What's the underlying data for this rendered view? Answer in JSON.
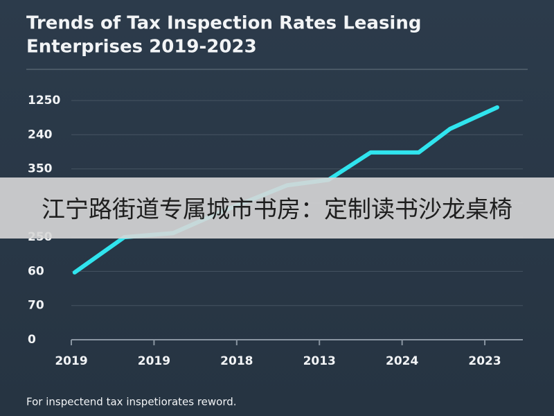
{
  "chart_data": {
    "type": "line",
    "title": [
      "Trends of Tax Inspection Rates Leasing",
      "Enterprises 2019-2023"
    ],
    "note": "For inspectend tax inspetiorates reword.",
    "overlay": "江宁路街道专属城市书房：定制读书沙龙桌椅",
    "x": [
      0.04,
      0.64,
      1.23,
      1.82,
      2.61,
      3.11,
      3.62,
      4.2,
      4.58,
      5.15
    ],
    "series": [
      {
        "color": "#30e4ee",
        "values": [
          1.97,
          3.0,
          3.12,
          3.75,
          4.52,
          4.68,
          5.48,
          5.48,
          6.17,
          6.8
        ]
      }
    ],
    "xlim": [
      0,
      5.46
    ],
    "xticks": [
      {
        "value": 0,
        "label": "2019"
      },
      {
        "value": 1,
        "label": "2019"
      },
      {
        "value": 2,
        "label": "2018"
      },
      {
        "value": 3,
        "label": "2013"
      },
      {
        "value": 4,
        "label": "2024"
      },
      {
        "value": 5,
        "label": "2023"
      }
    ],
    "ylim": [
      0,
      7
    ],
    "yticks": [
      0,
      {
        "value": 1,
        "label": "70"
      },
      {
        "value": 2,
        "label": "60"
      },
      {
        "value": 3,
        "label": "250"
      },
      {
        "value": 4
      },
      {
        "value": 5,
        "label": "350"
      },
      {
        "value": 6,
        "label": "240"
      },
      {
        "value": 7,
        "label": "1250"
      }
    ],
    "grid": true
  }
}
